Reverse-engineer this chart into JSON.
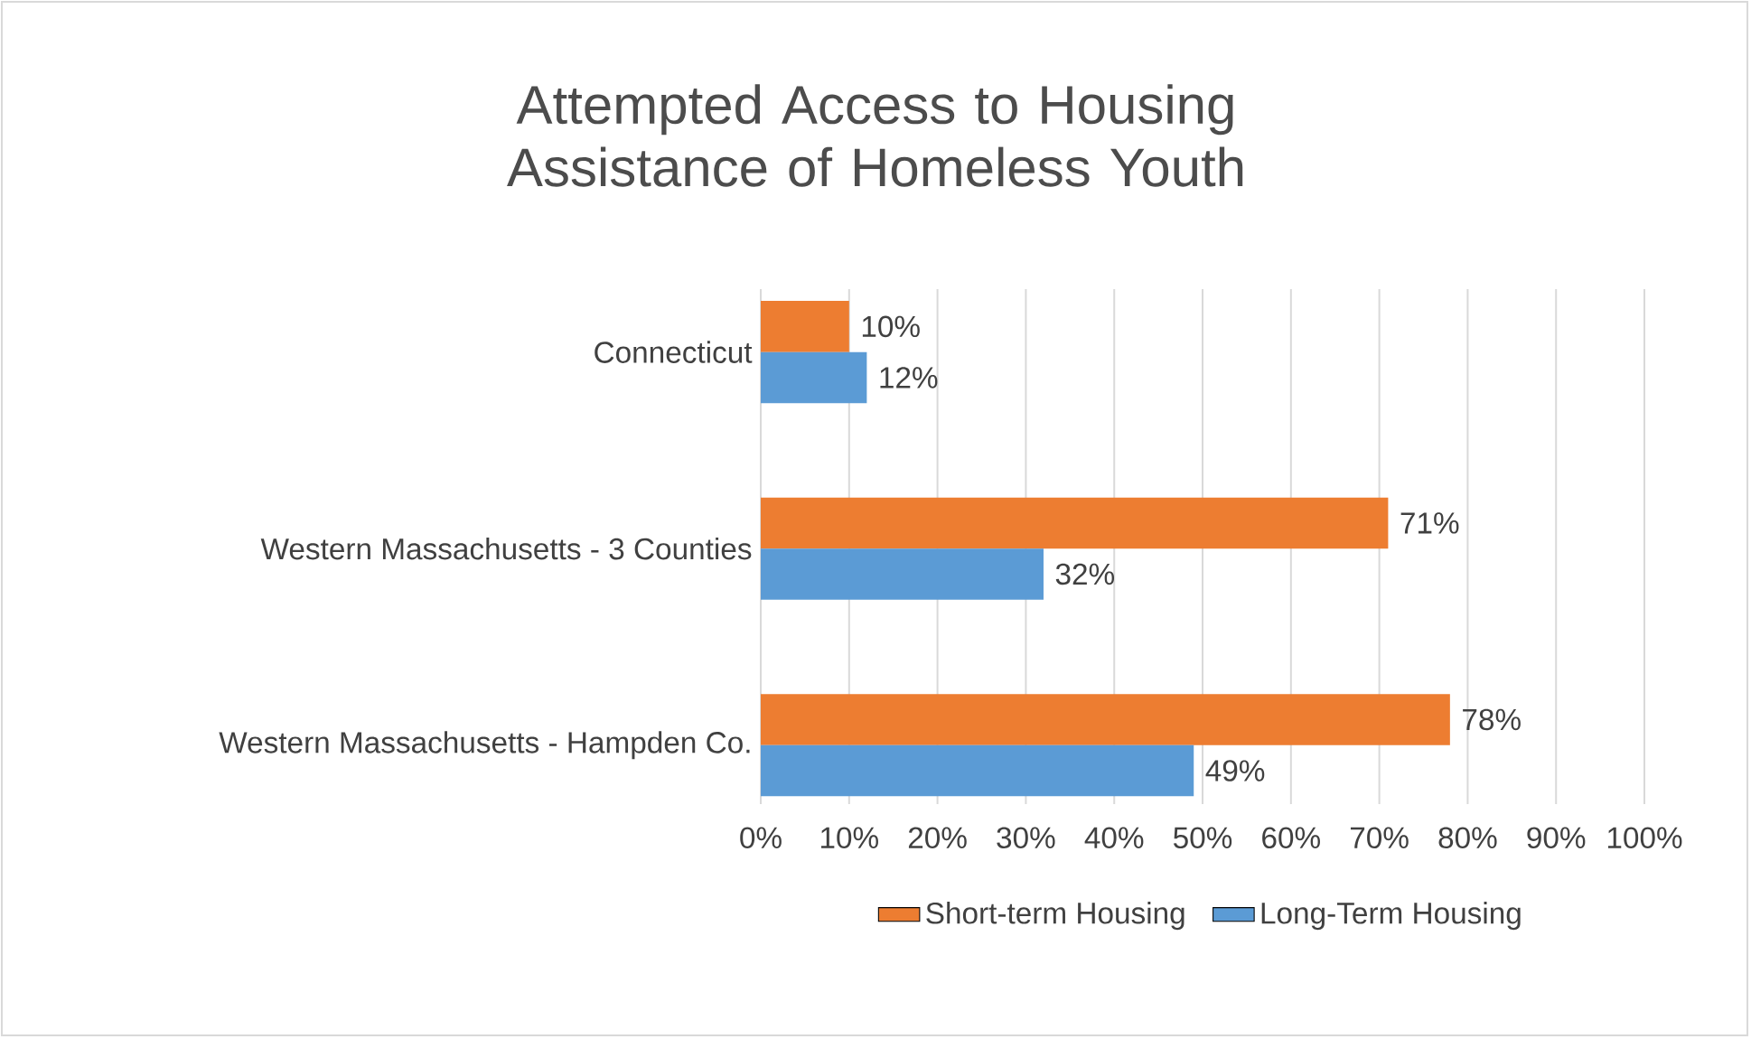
{
  "chart_data": {
    "type": "bar",
    "orientation": "horizontal",
    "title": "Attempted Access to Housing Assistance of Homeless Youth",
    "categories": [
      "Connecticut",
      "Western Massachusetts - 3 Counties",
      "Western Massachusetts - Hampden Co."
    ],
    "series": [
      {
        "name": "Short-term Housing",
        "color": "#ed7d31",
        "values": [
          10,
          71,
          78
        ],
        "value_labels": [
          "10%",
          "71%",
          "78%"
        ]
      },
      {
        "name": "Long-Term Housing",
        "color": "#5b9bd5",
        "values": [
          12,
          32,
          49
        ],
        "value_labels": [
          "12%",
          "32%",
          "49%"
        ]
      }
    ],
    "xlim": [
      0,
      100
    ],
    "xticks": [
      {
        "value": 0,
        "label": "0%"
      },
      {
        "value": 10,
        "label": "10%"
      },
      {
        "value": 20,
        "label": "20%"
      },
      {
        "value": 30,
        "label": "30%"
      },
      {
        "value": 40,
        "label": "40%"
      },
      {
        "value": 50,
        "label": "50%"
      },
      {
        "value": 60,
        "label": "60%"
      },
      {
        "value": 70,
        "label": "70%"
      },
      {
        "value": 80,
        "label": "80%"
      },
      {
        "value": 90,
        "label": "90%"
      },
      {
        "value": 100,
        "label": "100%"
      }
    ],
    "grid": "x",
    "legend": "bottom"
  }
}
